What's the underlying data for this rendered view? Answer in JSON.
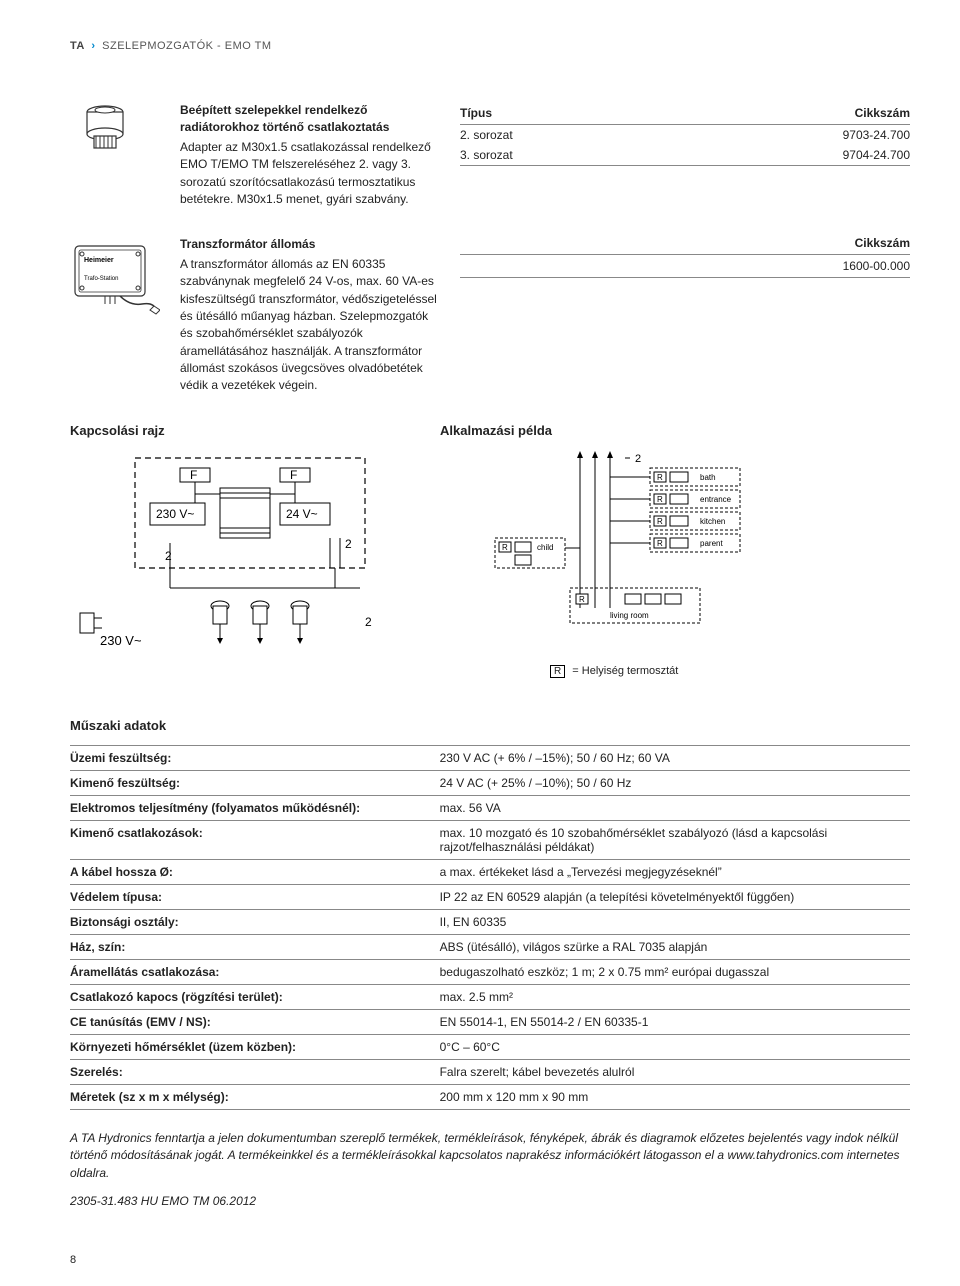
{
  "header": {
    "brand": "TA",
    "trail": "SZELEPMOZGATÓK - EMO TM"
  },
  "section1": {
    "title": "Beépített szelepekkel rendelkező radiátorokhoz történő csatlakoztatás",
    "body": "Adapter az M30x1.5 csatlakozással rendelkező EMO T/EMO TM felszereléséhez 2. vagy 3. sorozatú szorítócsatlakozású termosztatikus betétekre. M30x1.5 menet, gyári szabvány.",
    "table": {
      "head_type": "Típus",
      "head_code": "Cikkszám",
      "rows": [
        {
          "type": "2. sorozat",
          "code": "9703-24.700"
        },
        {
          "type": "3. sorozat",
          "code": "9704-24.700"
        }
      ]
    }
  },
  "section2": {
    "title": "Transzformátor állomás",
    "body": "A transzformátor állomás az EN 60335 szabványnak megfelelő 24 V-os, max. 60 VA-es kisfeszültségű transzformátor, védőszigeteléssel és ütésálló műanyag házban. Szelepmozgatók és szobahőmérséklet szabályozók áramellátásához használják. A transzformátor állomást szokásos üvegcsöves olvadóbetétek védik a vezetékek végein.",
    "cikk_head": "Cikkszám",
    "cikk_val": "1600-00.000",
    "icon_labels": {
      "brand": "Heimeier",
      "sub": "Trafo-Station"
    }
  },
  "diagrams": {
    "left_title": "Kapcsolási rajz",
    "right_title": "Alkalmazási példa",
    "wiring": {
      "v230_main": "230 V~",
      "v230_box": "230 V~",
      "v24_box": "24 V~",
      "f1": "F",
      "f2": "F",
      "two_a": "2",
      "two_b": "2",
      "two_c": "2"
    },
    "app": {
      "rooms": [
        "bath",
        "entrance",
        "kitchen",
        "parent"
      ],
      "child": "child",
      "living": "living room",
      "two": "2",
      "legend_r": "R",
      "legend_txt": " = Helyiség termosztát"
    }
  },
  "tech": {
    "title": "Műszaki adatok",
    "rows": [
      {
        "k": "Üzemi feszültség:",
        "v": "230 V AC (+ 6% / –15%); 50 / 60 Hz; 60 VA"
      },
      {
        "k": "Kimenő feszültség:",
        "v": "24 V AC (+ 25% / –10%); 50 / 60 Hz"
      },
      {
        "k": "Elektromos teljesítmény (folyamatos működésnél):",
        "v": "max. 56 VA"
      },
      {
        "k": "Kimenő csatlakozások:",
        "v": "max. 10 mozgató és 10 szobahőmérséklet szabályozó (lásd a kapcsolási rajzot/felhasználási példákat)"
      },
      {
        "k": "A kábel hossza Ø:",
        "v": "a max. értékeket lásd a „Tervezési megjegyzéseknél”"
      },
      {
        "k": "Védelem típusa:",
        "v": "IP 22 az EN 60529 alapján (a telepítési követelményektől függően)"
      },
      {
        "k": "Biztonsági osztály:",
        "v": "II, EN 60335"
      },
      {
        "k": "Ház, szín:",
        "v": "ABS (ütésálló), világos szürke a RAL 7035 alapján"
      },
      {
        "k": "Áramellátás csatlakozása:",
        "v": "bedugaszolható eszköz; 1 m; 2 x 0.75 mm² európai dugasszal"
      },
      {
        "k": "Csatlakozó kapocs (rögzítési terület):",
        "v": "max. 2.5 mm²"
      },
      {
        "k": "CE tanúsítás (EMV / NS):",
        "v": "EN 55014-1, EN 55014-2 / EN 60335-1"
      },
      {
        "k": "Környezeti hőmérséklet (üzem közben):",
        "v": "0°C – 60°C"
      },
      {
        "k": "Szerelés:",
        "v": "Falra szerelt; kábel bevezetés alulról"
      },
      {
        "k": "Méretek (sz x m x mélység):",
        "v": "200 mm x 120 mm x 90 mm"
      }
    ]
  },
  "disclaimer": "A TA Hydronics fenntartja a jelen dokumentumban szereplő termékek, termékleírások, fényképek, ábrák és diagramok előzetes bejelentés vagy indok nélkül történő módosításának jogát. A termékeinkkel és a termékleírásokkal kapcsolatos naprakész információkért látogasson el a www.tahydronics.com internetes oldalra.",
  "doc_code": "2305-31.483 HU EMO TM 06.2012",
  "page_num": "8"
}
